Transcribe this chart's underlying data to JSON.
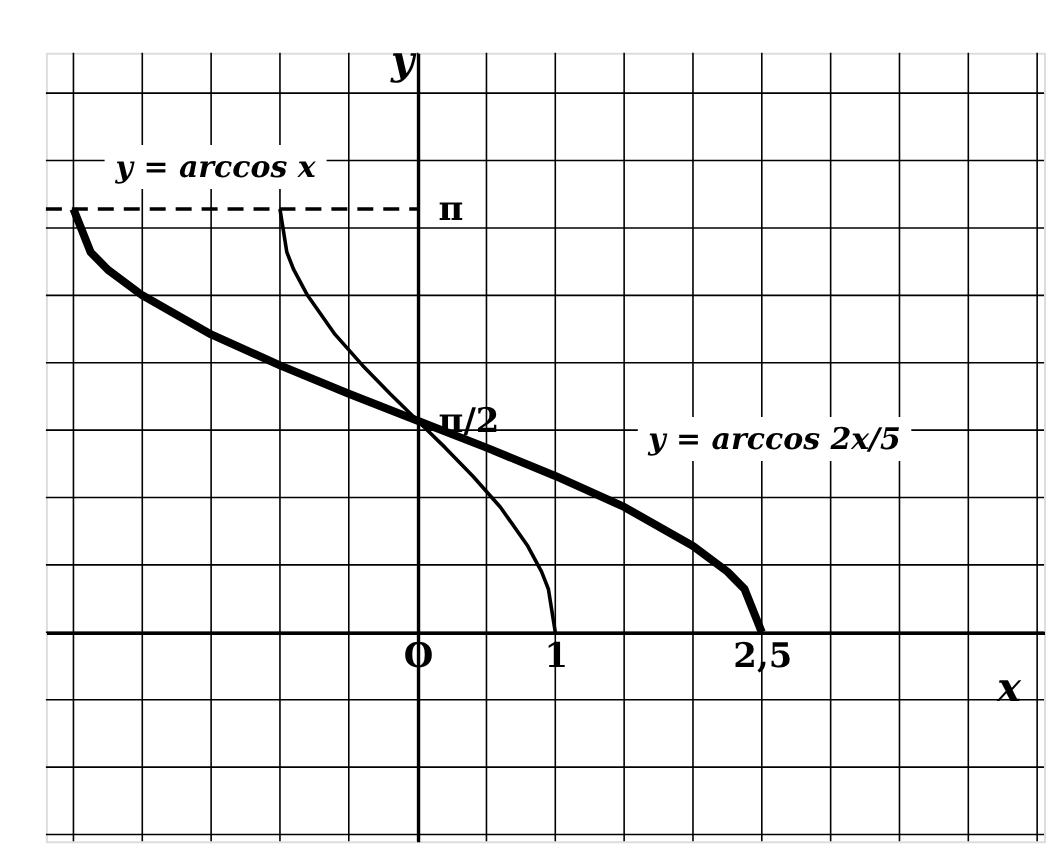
{
  "chart_data": {
    "type": "line",
    "xlabel": "x",
    "ylabel": "y",
    "xlim": [
      -2.7,
      4.55
    ],
    "ylim": [
      -1.55,
      4.3
    ],
    "xticks": [
      {
        "value": -2.5,
        "label": null
      },
      {
        "value": -2,
        "label": null
      },
      {
        "value": -1.5,
        "label": null
      },
      {
        "value": -1,
        "label": null
      },
      {
        "value": -0.5,
        "label": null
      },
      {
        "value": 0,
        "label": "O"
      },
      {
        "value": 0.5,
        "label": null
      },
      1,
      {
        "value": 1.5,
        "label": null
      },
      {
        "value": 2,
        "label": null
      },
      {
        "value": 2.5,
        "label": "2,5"
      },
      {
        "value": 3,
        "label": null
      },
      {
        "value": 3.5,
        "label": null
      },
      {
        "value": 4,
        "label": null
      },
      {
        "value": 4.5,
        "label": null
      }
    ],
    "yticks": [
      {
        "value": -1.5,
        "label": null
      },
      {
        "value": -1,
        "label": null
      },
      {
        "value": -0.5,
        "label": null
      },
      {
        "value": 0,
        "label": null
      },
      {
        "value": 0.5,
        "label": null
      },
      {
        "value": 1,
        "label": null
      },
      {
        "value": 1.5,
        "label": null
      },
      {
        "value": 1.5708,
        "label": "π/2"
      },
      {
        "value": 2,
        "label": null
      },
      {
        "value": 2.5,
        "label": null
      },
      {
        "value": 3,
        "label": null
      },
      {
        "value": 3.1416,
        "label": "π"
      },
      {
        "value": 3.5,
        "label": null
      },
      {
        "value": 4,
        "label": null
      }
    ],
    "grid": true,
    "marker": "none",
    "series": [
      {
        "color": "#000000",
        "x": [
          -1,
          -0.95,
          -0.9,
          -0.8,
          -0.6,
          -0.4,
          -0.2,
          0,
          0.2,
          0.4,
          0.6,
          0.8,
          0.9,
          0.95,
          1
        ],
        "values": [
          3.14,
          2.82,
          2.69,
          2.5,
          2.21,
          1.98,
          1.77,
          1.57,
          1.37,
          1.16,
          0.93,
          0.64,
          0.45,
          0.32,
          0
        ]
      },
      {
        "color": "#000000",
        "x": [
          -2.5,
          -2.375,
          -2.25,
          -2,
          -1.5,
          -1,
          -0.5,
          0,
          0.5,
          1,
          1.5,
          2,
          2.25,
          2.375,
          2.5
        ],
        "values": [
          3.14,
          2.82,
          2.69,
          2.5,
          2.21,
          1.98,
          1.77,
          1.57,
          1.37,
          1.16,
          0.93,
          0.64,
          0.45,
          0.32,
          0
        ]
      },
      {
        "color": "#000000",
        "line_style": "dashed",
        "x": [
          -2.7,
          0
        ],
        "values": [
          3.14,
          3.14
        ]
      }
    ],
    "annotations": [
      "y = arccos x",
      "y = arccos 2x/5"
    ]
  }
}
